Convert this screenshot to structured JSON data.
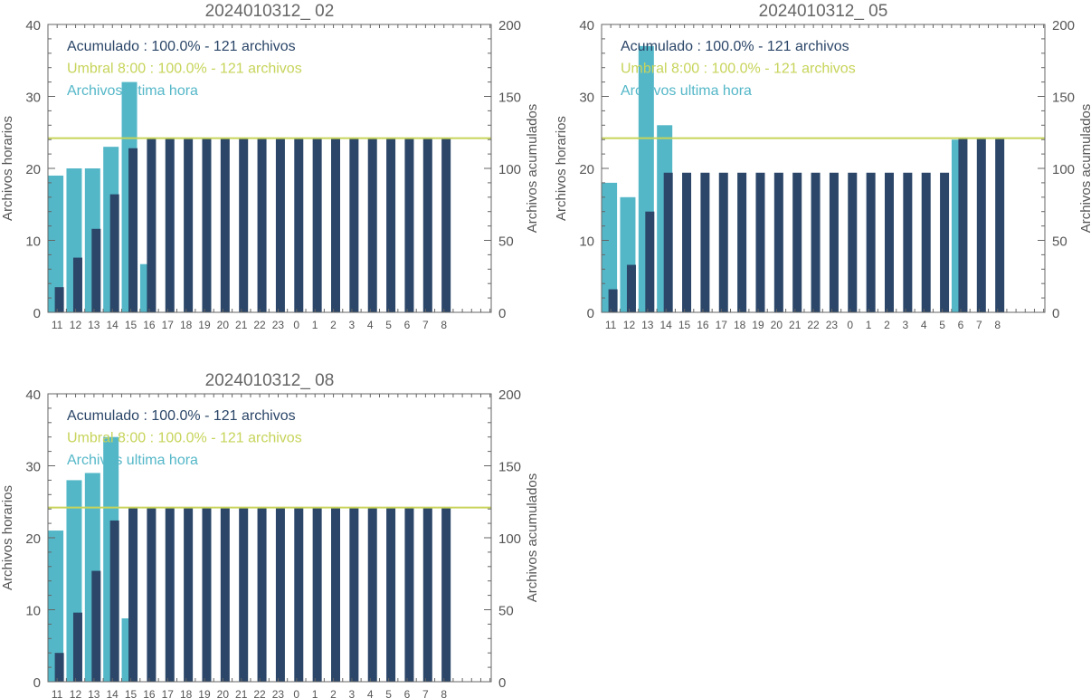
{
  "colors": {
    "hourly": "#54b7c8",
    "cumulative": "#2b4668",
    "threshold": "#c7d45a",
    "axis": "#666666",
    "text": "#555555"
  },
  "chart_data": [
    {
      "type": "bar",
      "title": "2024010312_ 02",
      "ylabel": "Archivos horarios",
      "y2label": "Archivos acumulados",
      "categories": [
        "11",
        "12",
        "13",
        "14",
        "15",
        "16",
        "17",
        "18",
        "19",
        "20",
        "21",
        "22",
        "23",
        "0",
        "1",
        "2",
        "3",
        "4",
        "5",
        "6",
        "7",
        "8"
      ],
      "ylim": [
        0,
        40
      ],
      "y2lim": [
        0,
        200
      ],
      "yticks": [
        "0",
        "10",
        "20",
        "30",
        "40"
      ],
      "y2ticks": [
        "0",
        "50",
        "100",
        "150",
        "200"
      ],
      "legend": [
        "Acumulado : 100.0% - 121 archivos",
        "Umbral 8:00 : 100.0% - 121 archivos",
        "Archivos ultima hora"
      ],
      "threshold": 121,
      "series": [
        {
          "values": [
            19,
            20,
            20,
            23,
            32,
            6.7,
            0,
            0,
            0,
            0,
            0,
            0,
            0,
            0,
            0,
            0,
            0,
            0,
            0,
            0,
            0,
            0
          ]
        },
        {
          "values": [
            17.5,
            38,
            58,
            82,
            114,
            121,
            121,
            121,
            121,
            121,
            121,
            121,
            121,
            121,
            121,
            121,
            121,
            121,
            121,
            121,
            121,
            121
          ]
        }
      ]
    },
    {
      "type": "bar",
      "title": "2024010312_ 05",
      "ylabel": "Archivos horarios",
      "y2label": "Archivos acumulados",
      "categories": [
        "11",
        "12",
        "13",
        "14",
        "15",
        "16",
        "17",
        "18",
        "19",
        "20",
        "21",
        "22",
        "23",
        "0",
        "1",
        "2",
        "3",
        "4",
        "5",
        "6",
        "7",
        "8"
      ],
      "ylim": [
        0,
        40
      ],
      "y2lim": [
        0,
        200
      ],
      "yticks": [
        "0",
        "10",
        "20",
        "30",
        "40"
      ],
      "y2ticks": [
        "0",
        "50",
        "100",
        "150",
        "200"
      ],
      "legend": [
        "Acumulado : 100.0% - 121 archivos",
        "Umbral 8:00 : 100.0% - 121 archivos",
        "Archivos ultima hora"
      ],
      "threshold": 121,
      "series": [
        {
          "values": [
            18,
            16,
            37,
            26,
            0,
            0,
            0,
            0,
            0,
            0,
            0,
            0,
            0,
            0,
            0,
            0,
            0,
            0,
            0,
            24,
            0,
            0
          ]
        },
        {
          "values": [
            16,
            33,
            70,
            97,
            97,
            97,
            97,
            97,
            97,
            97,
            97,
            97,
            97,
            97,
            97,
            97,
            97,
            97,
            97,
            121,
            121,
            121
          ]
        }
      ]
    },
    {
      "type": "bar",
      "title": "2024010312_ 08",
      "ylabel": "Archivos horarios",
      "y2label": "Archivos acumulados",
      "categories": [
        "11",
        "12",
        "13",
        "14",
        "15",
        "16",
        "17",
        "18",
        "19",
        "20",
        "21",
        "22",
        "23",
        "0",
        "1",
        "2",
        "3",
        "4",
        "5",
        "6",
        "7",
        "8"
      ],
      "ylim": [
        0,
        40
      ],
      "y2lim": [
        0,
        200
      ],
      "yticks": [
        "0",
        "10",
        "20",
        "30",
        "40"
      ],
      "y2ticks": [
        "0",
        "50",
        "100",
        "150",
        "200"
      ],
      "legend": [
        "Acumulado : 100.0% - 121 archivos",
        "Umbral 8:00 : 100.0% - 121 archivos",
        "Archivos ultima hora"
      ],
      "threshold": 121,
      "series": [
        {
          "values": [
            21,
            28,
            29,
            34,
            8.8,
            0,
            0,
            0,
            0,
            0,
            0,
            0,
            0,
            0,
            0,
            0,
            0,
            0,
            0,
            0,
            0,
            0
          ]
        },
        {
          "values": [
            20,
            48,
            77,
            112,
            121,
            121,
            121,
            121,
            121,
            121,
            121,
            121,
            121,
            121,
            121,
            121,
            121,
            121,
            121,
            121,
            121,
            121
          ]
        }
      ]
    }
  ]
}
